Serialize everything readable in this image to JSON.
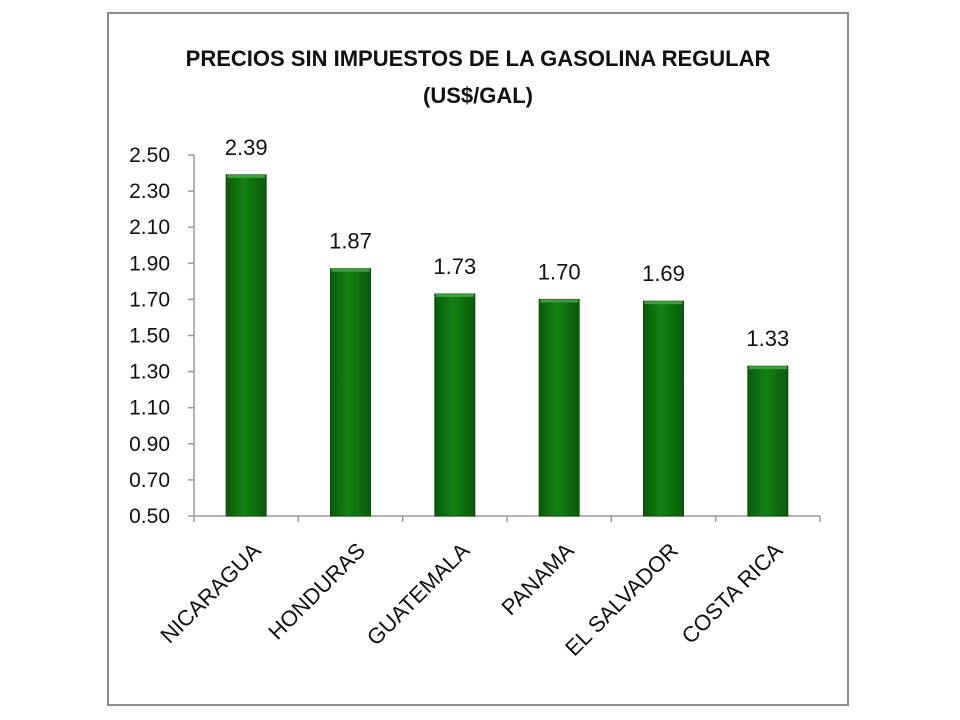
{
  "chart_data": {
    "type": "bar",
    "title": "PRECIOS SIN IMPUESTOS DE LA GASOLINA REGULAR",
    "subtitle": "(US$/GAL)",
    "categories": [
      "NICARAGUA",
      "HONDURAS",
      "GUATEMALA",
      "PANAMA",
      "EL SALVADOR",
      "COSTA RICA"
    ],
    "values": [
      2.39,
      1.87,
      1.73,
      1.7,
      1.69,
      1.33
    ],
    "data_labels": [
      "2.39",
      "1.87",
      "1.73",
      "1.70",
      "1.69",
      "1.33"
    ],
    "y_ticks": [
      "0.50",
      "0.70",
      "0.90",
      "1.10",
      "1.30",
      "1.50",
      "1.70",
      "1.90",
      "2.10",
      "2.30",
      "2.50"
    ],
    "ylim": [
      0.5,
      2.5
    ],
    "xlabel": "",
    "ylabel": "",
    "grid": false,
    "legend": "none",
    "colors": {
      "bar_fill": "#0c6e0c",
      "bar_top": "#3f9e3f",
      "bar_edge": "#0a4f0a",
      "axis": "#9a9a9a",
      "frame": "#8c8c8c"
    }
  }
}
